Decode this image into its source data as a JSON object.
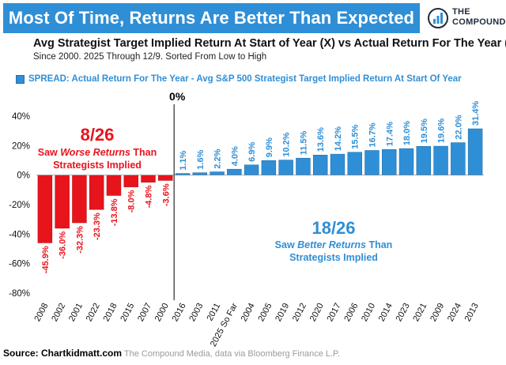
{
  "header": {
    "title": "Most Of Time, Returns Are Better Than Expected",
    "logo_text_line1": "THE",
    "logo_text_line2": "COMPOUND",
    "subtitle": "Avg Strategist Target Implied Return At Start of Year (X) vs Actual Return For The Year (Y)",
    "note": "Since 2000. 2025 Through 12/9. Sorted From Low to High"
  },
  "legend": {
    "label": "SPREAD: Actual Return For The Year - Avg S&P 500 Strategist Target Implied Return At Start Of Year"
  },
  "annotations": {
    "zero_marker": "0%",
    "worse_count": "8/26",
    "worse_text_prefix": "Saw ",
    "worse_text_emph": "Worse Returns",
    "worse_text_suffix": " Than",
    "worse_text_line2": "Strategists Implied",
    "better_count": "18/26",
    "better_text_prefix": "Saw ",
    "better_text_emph": "Better Returns",
    "better_text_suffix": " Than",
    "better_text_line2": "Strategists Implied"
  },
  "source": {
    "label": "Source: Chartkidmatt.com",
    "rest": " The Compound Media, data via Bloomberg Finance L.P."
  },
  "colors": {
    "negative": "#e8141c",
    "positive": "#2f8fd6",
    "title_bar": "#2f8fd6",
    "worse_text": "#e8141c",
    "better_text": "#2f8fd6"
  },
  "chart_data": {
    "type": "bar",
    "categories": [
      "2008",
      "2002",
      "2001",
      "2022",
      "2018",
      "2015",
      "2007",
      "2000",
      "2016",
      "2003",
      "2011",
      "2025 So Far",
      "2004",
      "2005",
      "2019",
      "2012",
      "2020",
      "2017",
      "2006",
      "2010",
      "2014",
      "2023",
      "2021",
      "2009",
      "2024",
      "2013"
    ],
    "values": [
      -45.9,
      -36.0,
      -32.3,
      -23.3,
      -13.8,
      -8.0,
      -4.8,
      -3.6,
      1.1,
      1.6,
      2.2,
      4.0,
      6.9,
      9.9,
      10.2,
      11.5,
      13.6,
      14.2,
      15.5,
      16.7,
      17.4,
      18.0,
      19.5,
      19.6,
      22.0,
      31.4
    ],
    "labels": [
      "-45.9%",
      "-36.0%",
      "-32.3%",
      "-23.3%",
      "-13.8%",
      "-8.0%",
      "-4.8%",
      "-3.6%",
      "1.1%",
      "1.6%",
      "2.2%",
      "4.0%",
      "6.9%",
      "9.9%",
      "10.2%",
      "11.5%",
      "13.6%",
      "14.2%",
      "15.5%",
      "16.7%",
      "17.4%",
      "18.0%",
      "19.5%",
      "19.6%",
      "22.0%",
      "31.4%"
    ],
    "yticks": [
      40,
      20,
      0,
      -20,
      -40,
      -60,
      -80
    ],
    "ytick_labels": [
      "40%",
      "20%",
      "0%",
      "-20%",
      "-40%",
      "-60%",
      "-80%"
    ],
    "ylim": [
      -80,
      50
    ],
    "grid": false,
    "legend_position": "top-left"
  }
}
